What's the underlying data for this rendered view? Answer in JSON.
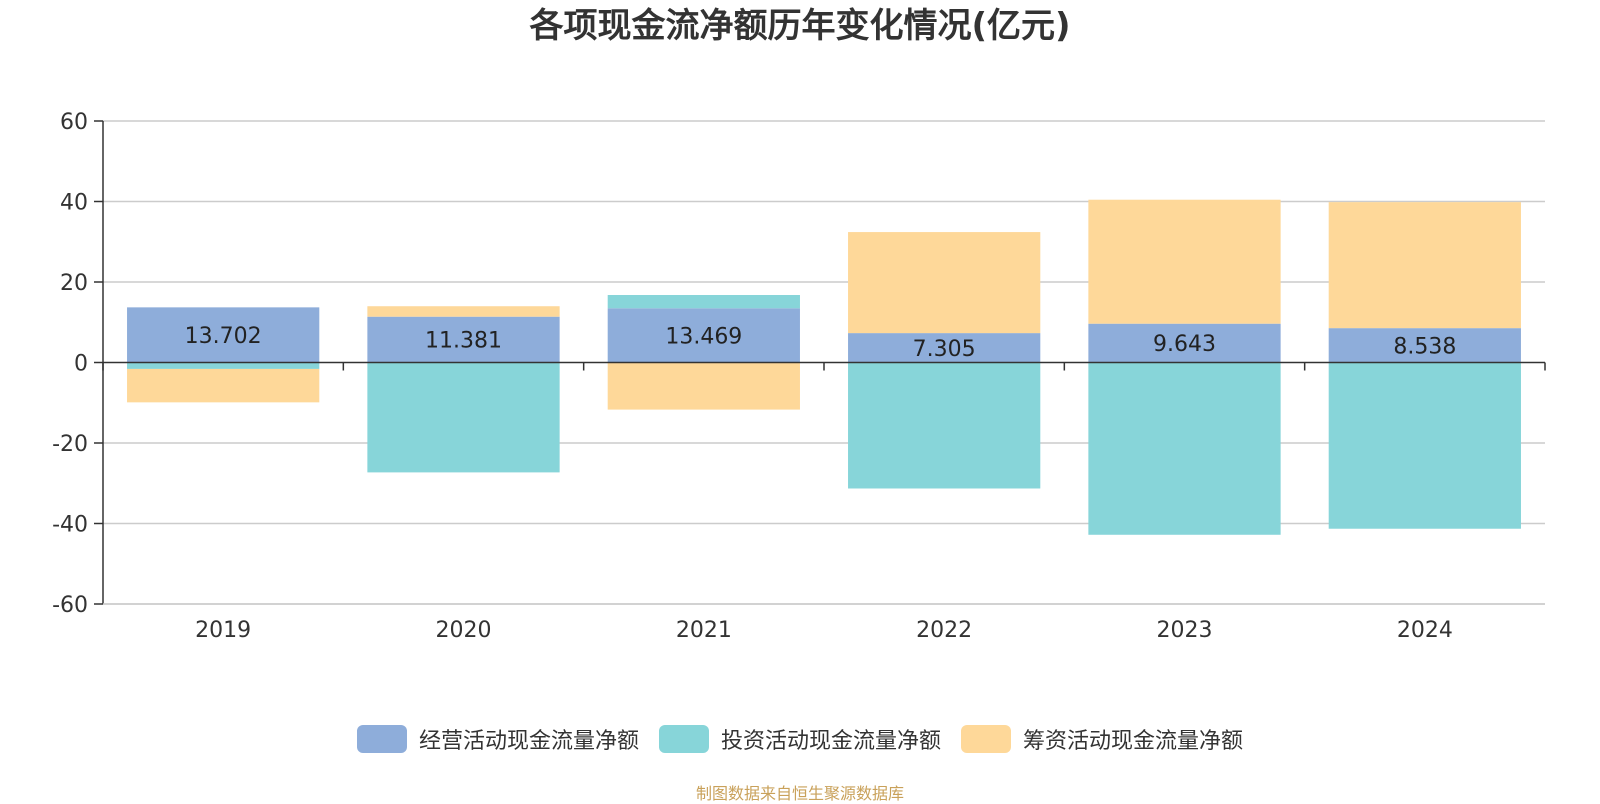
{
  "chart_data": {
    "type": "bar",
    "stacked": true,
    "title": "各项现金流净额历年变化情况(亿元)",
    "categories": [
      "2019",
      "2020",
      "2021",
      "2022",
      "2023",
      "2024"
    ],
    "series": [
      {
        "name": "经营活动现金流量净额",
        "color": "#8eadda",
        "values": [
          13.702,
          11.381,
          13.469,
          7.305,
          9.643,
          8.538
        ],
        "data_labels": [
          "13.702",
          "11.381",
          "13.469",
          "7.305",
          "9.643",
          "8.538"
        ]
      },
      {
        "name": "投资活动现金流量净额",
        "color": "#87d5d9",
        "values": [
          -1.6,
          -27.3,
          3.3,
          -31.3,
          -42.8,
          -41.3
        ]
      },
      {
        "name": "筹资活动现金流量净额",
        "color": "#fed899",
        "values": [
          -8.3,
          2.6,
          -11.7,
          25.1,
          30.8,
          31.3
        ]
      }
    ],
    "ylim": [
      -60,
      60
    ],
    "yticks": [
      60,
      40,
      20,
      0,
      -20,
      -40,
      -60
    ],
    "ytick_labels": [
      "60",
      "40",
      "20",
      "0",
      "-20",
      "-40",
      "-60"
    ],
    "grid": true,
    "legend_position": "bottom"
  },
  "source_note": "制图数据来自恒生聚源数据库"
}
